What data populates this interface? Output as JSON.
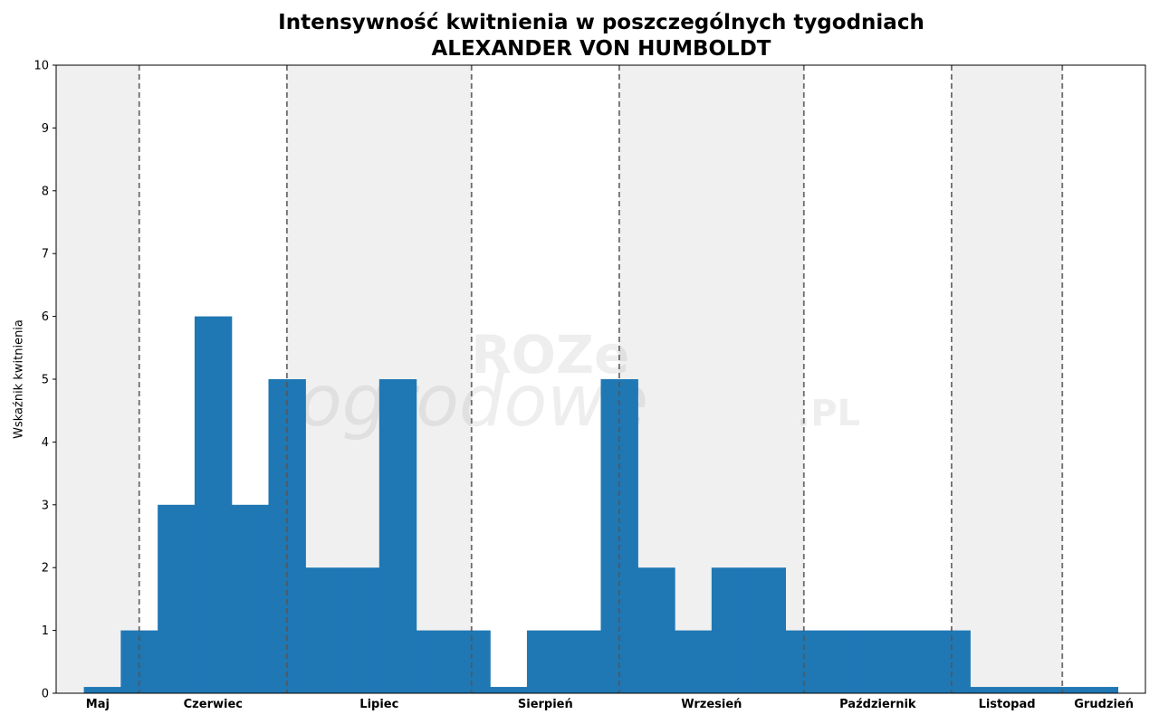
{
  "chart_data": {
    "type": "bar",
    "title": "Intensywność kwitnienia w poszczególnych tygodniach",
    "subtitle": "ALEXANDER VON HUMBOLDT",
    "ylabel": "Wskaźnik kwitnienia",
    "xlabel": "",
    "ylim": [
      0,
      10
    ],
    "yticks": [
      "0",
      "1",
      "2",
      "3",
      "4",
      "5",
      "6",
      "7",
      "8",
      "9",
      "10"
    ],
    "grid": false,
    "week_range": [
      0,
      29.5
    ],
    "bars": [
      {
        "x": 1.25,
        "value": 0.1
      },
      {
        "x": 2.25,
        "value": 1
      },
      {
        "x": 3.25,
        "value": 3
      },
      {
        "x": 4.25,
        "value": 6
      },
      {
        "x": 5.25,
        "value": 3
      },
      {
        "x": 6.25,
        "value": 5
      },
      {
        "x": 7.25,
        "value": 2
      },
      {
        "x": 8.25,
        "value": 2
      },
      {
        "x": 9.25,
        "value": 5
      },
      {
        "x": 10.25,
        "value": 1
      },
      {
        "x": 11.25,
        "value": 1
      },
      {
        "x": 12.25,
        "value": 0.1
      },
      {
        "x": 13.25,
        "value": 1
      },
      {
        "x": 14.25,
        "value": 1
      },
      {
        "x": 15.25,
        "value": 5
      },
      {
        "x": 16.25,
        "value": 2
      },
      {
        "x": 17.25,
        "value": 1
      },
      {
        "x": 18.25,
        "value": 2
      },
      {
        "x": 19.25,
        "value": 2
      },
      {
        "x": 20.25,
        "value": 1
      },
      {
        "x": 21.25,
        "value": 1
      },
      {
        "x": 22.25,
        "value": 1
      },
      {
        "x": 23.25,
        "value": 1
      },
      {
        "x": 24.25,
        "value": 1
      },
      {
        "x": 25.25,
        "value": 0.1
      },
      {
        "x": 26.25,
        "value": 0.1
      },
      {
        "x": 27.25,
        "value": 0.1
      },
      {
        "x": 28.25,
        "value": 0.1
      }
    ],
    "months": [
      {
        "label": "Maj",
        "start": 0,
        "end": 2.25
      },
      {
        "label": "Czerwiec",
        "start": 2.25,
        "end": 6.25
      },
      {
        "label": "Lipiec",
        "start": 6.25,
        "end": 11.25
      },
      {
        "label": "Sierpień",
        "start": 11.25,
        "end": 15.25
      },
      {
        "label": "Wrzesień",
        "start": 15.25,
        "end": 20.25
      },
      {
        "label": "Październik",
        "start": 20.25,
        "end": 24.25
      },
      {
        "label": "Listopad",
        "start": 24.25,
        "end": 27.25
      },
      {
        "label": "Grudzień",
        "start": 27.25,
        "end": 29.5
      }
    ],
    "shaded_months": [
      "Maj",
      "Lipiec",
      "Wrzesień",
      "Listopad"
    ],
    "colors": {
      "bar": "#1f77b4",
      "shade": "#f0f0f0",
      "divider": "#555555"
    }
  },
  "watermark": {
    "line1": "ROZe",
    "line2": "ogrodowe",
    "suffix": ".PL"
  }
}
